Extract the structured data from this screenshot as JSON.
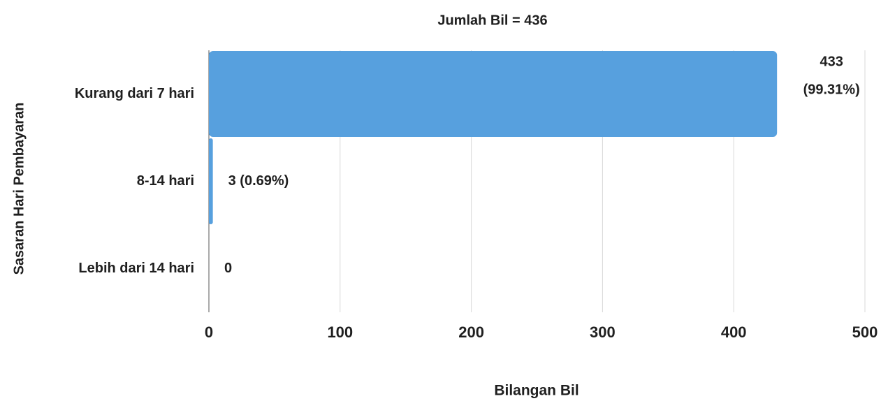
{
  "chart_data": {
    "type": "barh",
    "title": "Jumlah  Bil = 436",
    "categories": [
      "Kurang dari 7 hari",
      "8-14 hari",
      "Lebih dari 14 hari"
    ],
    "values": [
      433,
      3,
      0
    ],
    "value_labels": [
      "433 (99.31%)",
      "3 (0.69%)",
      "0"
    ],
    "color": "#57a0de",
    "xlabel": "Bilangan Bil",
    "ylabel": "Sasaran Hari Pembayaran",
    "xlim": [
      0,
      500
    ],
    "xticks": [
      0,
      100,
      200,
      300,
      400,
      500
    ],
    "grid": true
  }
}
